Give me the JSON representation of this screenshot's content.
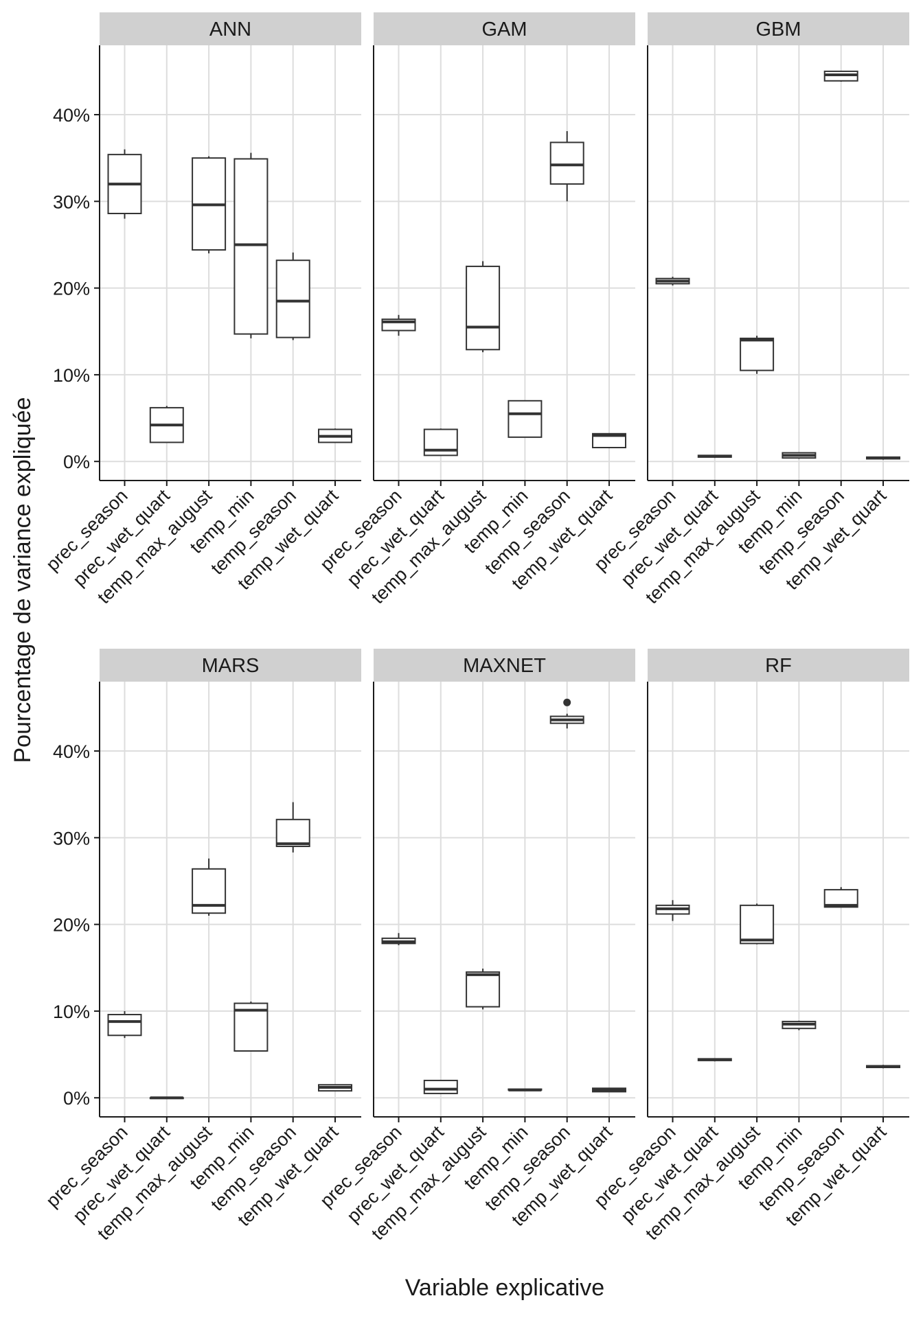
{
  "chart_data": {
    "type": "boxplot-facets",
    "xlabel": "Variable explicative",
    "ylabel": "Pourcentage de variance expliquée",
    "ylim": [
      -2.2,
      48
    ],
    "yticks": [
      0,
      10,
      20,
      30,
      40
    ],
    "ytick_labels": [
      "0%",
      "10%",
      "20%",
      "30%",
      "40%"
    ],
    "grid": true,
    "categories": [
      "prec_season",
      "prec_wet_quart",
      "temp_max_august",
      "temp_min",
      "temp_season",
      "temp_wet_quart"
    ],
    "panels": [
      {
        "name": "ANN",
        "boxes": [
          {
            "category": "prec_season",
            "min": 28.0,
            "q1": 28.6,
            "median": 32.0,
            "q3": 35.4,
            "max": 36.0
          },
          {
            "category": "prec_wet_quart",
            "min": 2.2,
            "q1": 2.2,
            "median": 4.2,
            "q3": 6.2,
            "max": 6.4
          },
          {
            "category": "temp_max_august",
            "min": 24.0,
            "q1": 24.4,
            "median": 29.6,
            "q3": 35.0,
            "max": 35.2
          },
          {
            "category": "temp_min",
            "min": 14.2,
            "q1": 14.7,
            "median": 25.0,
            "q3": 34.9,
            "max": 35.6
          },
          {
            "category": "temp_season",
            "min": 14.0,
            "q1": 14.3,
            "median": 18.5,
            "q3": 23.2,
            "max": 24.1
          },
          {
            "category": "temp_wet_quart",
            "min": 2.2,
            "q1": 2.2,
            "median": 2.9,
            "q3": 3.7,
            "max": 3.8
          }
        ]
      },
      {
        "name": "GAM",
        "boxes": [
          {
            "category": "prec_season",
            "min": 14.5,
            "q1": 15.1,
            "median": 16.1,
            "q3": 16.4,
            "max": 16.9
          },
          {
            "category": "prec_wet_quart",
            "min": 0.7,
            "q1": 0.7,
            "median": 1.3,
            "q3": 3.7,
            "max": 3.8
          },
          {
            "category": "temp_max_august",
            "min": 12.6,
            "q1": 12.9,
            "median": 15.5,
            "q3": 22.5,
            "max": 23.1
          },
          {
            "category": "temp_min",
            "min": 2.8,
            "q1": 2.8,
            "median": 5.5,
            "q3": 7.0,
            "max": 7.0
          },
          {
            "category": "temp_season",
            "min": 30.0,
            "q1": 32.0,
            "median": 34.2,
            "q3": 36.8,
            "max": 38.1
          },
          {
            "category": "temp_wet_quart",
            "min": 1.6,
            "q1": 1.6,
            "median": 3.0,
            "q3": 3.2,
            "max": 3.2
          }
        ]
      },
      {
        "name": "GBM",
        "boxes": [
          {
            "category": "prec_season",
            "min": 20.3,
            "q1": 20.5,
            "median": 20.8,
            "q3": 21.1,
            "max": 21.3
          },
          {
            "category": "prec_wet_quart",
            "min": 0.4,
            "q1": 0.5,
            "median": 0.6,
            "q3": 0.7,
            "max": 0.7
          },
          {
            "category": "temp_max_august",
            "min": 10.1,
            "q1": 10.5,
            "median": 14.0,
            "q3": 14.2,
            "max": 14.5
          },
          {
            "category": "temp_min",
            "min": 0.3,
            "q1": 0.4,
            "median": 0.7,
            "q3": 1.0,
            "max": 1.0
          },
          {
            "category": "temp_season",
            "min": 43.8,
            "q1": 43.9,
            "median": 44.6,
            "q3": 45.0,
            "max": 45.0
          },
          {
            "category": "temp_wet_quart",
            "min": 0.2,
            "q1": 0.3,
            "median": 0.4,
            "q3": 0.5,
            "max": 0.5
          }
        ]
      },
      {
        "name": "MARS",
        "boxes": [
          {
            "category": "prec_season",
            "min": 6.9,
            "q1": 7.2,
            "median": 8.8,
            "q3": 9.6,
            "max": 10.0
          },
          {
            "category": "prec_wet_quart",
            "min": 0.0,
            "q1": 0.0,
            "median": 0.0,
            "q3": 0.0,
            "max": 0.0
          },
          {
            "category": "temp_max_august",
            "min": 21.0,
            "q1": 21.3,
            "median": 22.2,
            "q3": 26.4,
            "max": 27.6
          },
          {
            "category": "temp_min",
            "min": 5.4,
            "q1": 5.4,
            "median": 10.1,
            "q3": 10.9,
            "max": 11.1
          },
          {
            "category": "temp_season",
            "min": 28.3,
            "q1": 29.0,
            "median": 29.3,
            "q3": 32.1,
            "max": 34.1
          },
          {
            "category": "temp_wet_quart",
            "min": 0.8,
            "q1": 0.8,
            "median": 1.2,
            "q3": 1.5,
            "max": 1.5
          }
        ]
      },
      {
        "name": "MAXNET",
        "boxes": [
          {
            "category": "prec_season",
            "min": 17.6,
            "q1": 17.8,
            "median": 18.0,
            "q3": 18.4,
            "max": 19.0
          },
          {
            "category": "prec_wet_quart",
            "min": 0.5,
            "q1": 0.5,
            "median": 1.0,
            "q3": 2.0,
            "max": 2.0
          },
          {
            "category": "temp_max_august",
            "min": 10.2,
            "q1": 10.5,
            "median": 14.2,
            "q3": 14.5,
            "max": 14.9
          },
          {
            "category": "temp_min",
            "min": 0.8,
            "q1": 0.9,
            "median": 0.9,
            "q3": 1.0,
            "max": 1.0
          },
          {
            "category": "temp_season",
            "min": 42.6,
            "q1": 43.2,
            "median": 43.6,
            "q3": 44.0,
            "max": 44.3,
            "outliers": [
              45.6
            ]
          },
          {
            "category": "temp_wet_quart",
            "min": 0.7,
            "q1": 0.7,
            "median": 0.9,
            "q3": 1.1,
            "max": 1.1
          }
        ]
      },
      {
        "name": "RF",
        "boxes": [
          {
            "category": "prec_season",
            "min": 20.4,
            "q1": 21.2,
            "median": 21.8,
            "q3": 22.2,
            "max": 22.8
          },
          {
            "category": "prec_wet_quart",
            "min": 4.2,
            "q1": 4.3,
            "median": 4.4,
            "q3": 4.5,
            "max": 4.5
          },
          {
            "category": "temp_max_august",
            "min": 17.7,
            "q1": 17.8,
            "median": 18.2,
            "q3": 22.2,
            "max": 22.4
          },
          {
            "category": "temp_min",
            "min": 7.8,
            "q1": 8.0,
            "median": 8.5,
            "q3": 8.8,
            "max": 8.9
          },
          {
            "category": "temp_season",
            "min": 22.0,
            "q1": 22.0,
            "median": 22.2,
            "q3": 24.0,
            "max": 24.3
          },
          {
            "category": "temp_wet_quart",
            "min": 3.4,
            "q1": 3.5,
            "median": 3.6,
            "q3": 3.7,
            "max": 3.8
          }
        ]
      }
    ]
  },
  "colors": {
    "strip": "#d0d0d0",
    "grid": "#dddddd",
    "box_stroke": "#333333",
    "axis": "#1a1a1a"
  }
}
